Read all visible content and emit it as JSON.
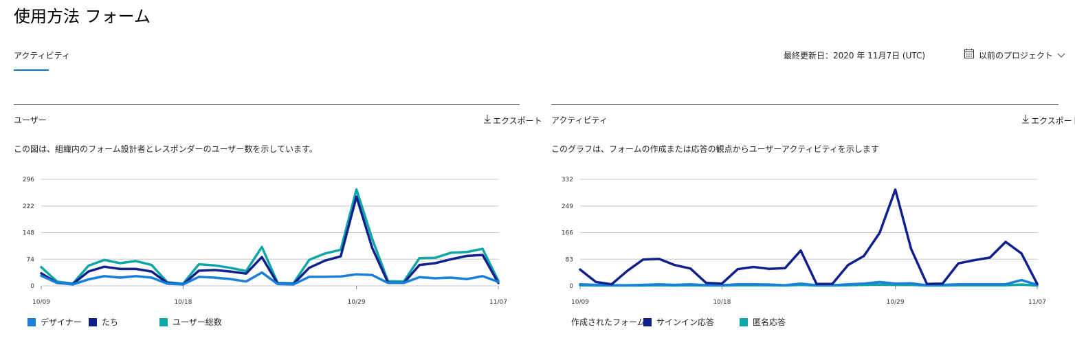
{
  "page": {
    "title": "使用方法 フォーム",
    "tab_activity": "アクティビティ",
    "last_updated": "最終更新日：2020 年 11月7日 (UTC)",
    "date_range": "以前のプロジェクト"
  },
  "icons": {
    "calendar": "calendar-icon",
    "chevron": "chevron-down-icon",
    "export": "download-arrow-icon"
  },
  "colors": {
    "accent": "#0078d4",
    "series_light_blue": "#1b7ed8",
    "series_dark_blue": "#0f1f8c",
    "series_teal": "#0fa6a6"
  },
  "users_panel": {
    "title": "ユーザー",
    "export_label": "エクスポート",
    "description": "この図は、組織内のフォーム設計者とレスポンダーのユーザー数を示しています。"
  },
  "activity_panel": {
    "title": "アクティビティ",
    "export_label": "エクスポート",
    "description": "このグラフは、フォームの作成または応答の観点からユーザーアクティビティを示します"
  },
  "chart_data": [
    {
      "type": "line",
      "ylim": [
        0,
        296
      ],
      "yticks": [
        "296",
        "222",
        "148",
        "74",
        "0"
      ],
      "xticks": [
        "10/09",
        "10/18",
        "10/29",
        "11/07"
      ],
      "grid": true,
      "legend_position": "bottom-left",
      "series": [
        {
          "name": "デザイナー",
          "color": "#1b7ed8",
          "values": [
            28,
            8,
            4,
            18,
            27,
            23,
            27,
            23,
            6,
            4,
            25,
            23,
            19,
            12,
            37,
            5,
            4,
            25,
            25,
            26,
            32,
            30,
            8,
            8,
            24,
            21,
            23,
            19,
            27,
            11
          ]
        },
        {
          "name": "たち",
          "color": "#0f1f8c",
          "values": [
            35,
            8,
            5,
            40,
            53,
            47,
            47,
            40,
            8,
            4,
            42,
            44,
            40,
            34,
            80,
            6,
            5,
            50,
            70,
            82,
            248,
            105,
            9,
            8,
            58,
            63,
            74,
            83,
            86,
            8
          ]
        },
        {
          "name": "ユーザー総数",
          "color": "#0fa6a6",
          "values": [
            52,
            12,
            6,
            56,
            72,
            63,
            69,
            58,
            10,
            6,
            60,
            57,
            50,
            41,
            108,
            8,
            7,
            72,
            90,
            100,
            268,
            130,
            13,
            12,
            77,
            78,
            92,
            94,
            103,
            14
          ]
        }
      ]
    },
    {
      "type": "line",
      "ylim": [
        0,
        332
      ],
      "yticks": [
        "332",
        "249",
        "166",
        "83",
        "0"
      ],
      "xticks": [
        "10/09",
        "10/18",
        "10/29",
        "11/07"
      ],
      "grid": true,
      "legend_position": "bottom-left",
      "series": [
        {
          "name": "作成されたフォーム",
          "color": "#1b7ed8",
          "values": [
            5,
            3,
            2,
            2,
            3,
            5,
            3,
            5,
            2,
            2,
            5,
            5,
            4,
            2,
            7,
            2,
            2,
            5,
            7,
            12,
            7,
            8,
            2,
            3,
            5,
            5,
            5,
            5,
            18,
            3
          ]
        },
        {
          "name": "サインイン応答",
          "color": "#0f1f8c",
          "values": [
            51,
            12,
            5,
            47,
            82,
            84,
            65,
            54,
            9,
            7,
            52,
            59,
            53,
            55,
            110,
            6,
            6,
            65,
            93,
            165,
            300,
            115,
            6,
            7,
            70,
            80,
            88,
            137,
            101,
            6
          ]
        },
        {
          "name": "匿名応答",
          "color": "#0fa6a6",
          "values": [
            2,
            1,
            1,
            1,
            1,
            2,
            1,
            2,
            1,
            1,
            2,
            2,
            2,
            1,
            3,
            1,
            1,
            2,
            3,
            4,
            3,
            3,
            1,
            1,
            2,
            2,
            2,
            2,
            4,
            1
          ]
        }
      ]
    }
  ]
}
